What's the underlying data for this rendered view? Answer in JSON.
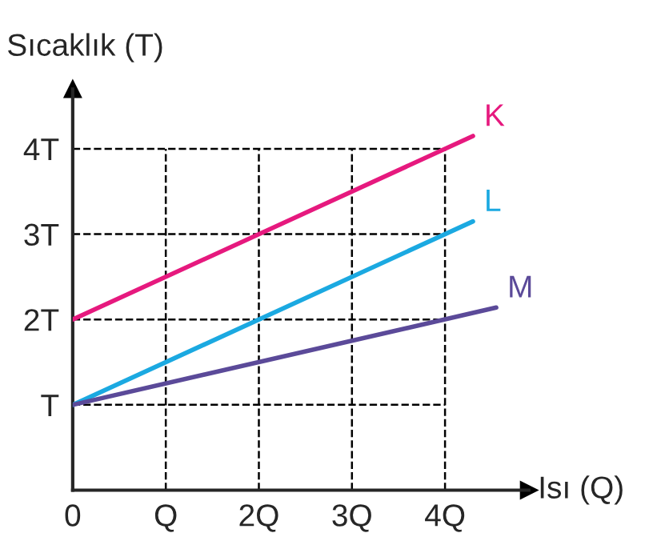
{
  "chart_data": {
    "type": "line",
    "xlabel": "Isı (Q)",
    "ylabel": "Sıcaklık (T)",
    "xlim": [
      0,
      4.9
    ],
    "ylim": [
      0,
      4.7
    ],
    "xticks": [
      {
        "value": 0,
        "label": "0"
      },
      {
        "value": 1,
        "label": "Q"
      },
      {
        "value": 2,
        "label": "2Q"
      },
      {
        "value": 3,
        "label": "3Q"
      },
      {
        "value": 4,
        "label": "4Q"
      }
    ],
    "yticks": [
      {
        "value": 1,
        "label": "T"
      },
      {
        "value": 2,
        "label": "2T"
      },
      {
        "value": 3,
        "label": "3T"
      },
      {
        "value": 4,
        "label": "4T"
      }
    ],
    "grid": true,
    "line_style": "solid",
    "marker": "none",
    "legend": false,
    "series": [
      {
        "name": "K",
        "color": "#e6197e",
        "x": [
          0,
          4.3
        ],
        "values": [
          2,
          4.15
        ]
      },
      {
        "name": "L",
        "color": "#1ba9e1",
        "x": [
          0,
          4.3
        ],
        "values": [
          1,
          3.15
        ]
      },
      {
        "name": "M",
        "color": "#5b4a99",
        "x": [
          0,
          4.55
        ],
        "values": [
          1,
          2.14
        ]
      }
    ]
  }
}
